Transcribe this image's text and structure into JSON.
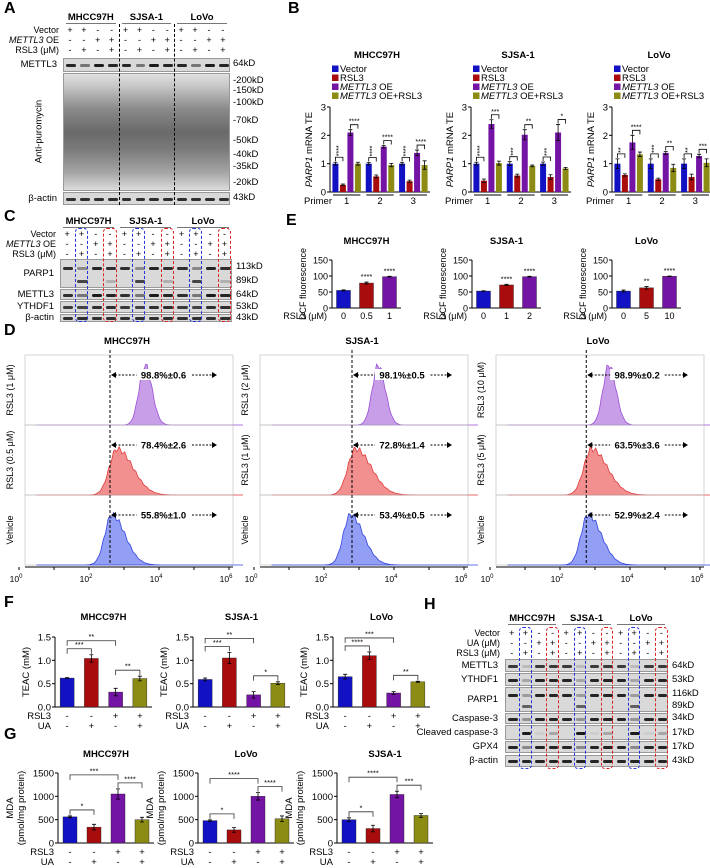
{
  "panel_letters": {
    "A": "A",
    "B": "B",
    "C": "C",
    "D": "D",
    "E": "E",
    "F": "F",
    "G": "G",
    "H": "H"
  },
  "colors": {
    "vector": "#1212c4",
    "rsl3": "#a80c0c",
    "mettl3": "#7414a4",
    "combo": "#8c8c14"
  },
  "blots": {
    "A": {
      "cells": [
        "MHCC97H",
        "SJSA-1",
        "LoVo"
      ],
      "treatments": [
        {
          "italic": "",
          "label": "Vector",
          "signs": [
            "+",
            "+",
            "-",
            "-"
          ]
        },
        {
          "italic": "METTL3",
          "label": " OE",
          "signs": [
            "-",
            "-",
            "+",
            "+"
          ]
        },
        {
          "italic": "",
          "label": "RSL3 (μM)",
          "signs": [
            "-",
            "+",
            "-",
            "+"
          ]
        }
      ],
      "rows": [
        {
          "label": "METTL3",
          "markers": [
            "64kD"
          ]
        },
        {
          "label": "Anti-puromycin",
          "markers": [
            "-200kD",
            "-150kD",
            "-100kD",
            "-70kD",
            "-50kD",
            "-40kD",
            "-35kD",
            "-20kD"
          ]
        },
        {
          "label": "β-actin",
          "markers": [
            "43kD"
          ]
        }
      ]
    },
    "C": {
      "cells": [
        "MHCC97H",
        "SJSA-1",
        "LoVo"
      ],
      "treatments": [
        {
          "italic": "",
          "label": "Vector",
          "signs": [
            "+",
            "+",
            "-",
            "-"
          ]
        },
        {
          "italic": "METTL3",
          "label": " OE",
          "signs": [
            "-",
            "-",
            "+",
            "+"
          ]
        },
        {
          "italic": "",
          "label": "RSL3 (μM)",
          "signs": [
            "-",
            "+",
            "-",
            "+"
          ]
        }
      ],
      "rows": [
        {
          "label": "PARP1",
          "markers": [
            "113kD",
            "89kD"
          ]
        },
        {
          "label": "METTL3",
          "markers": [
            "64kD"
          ]
        },
        {
          "label": "YTHDF1",
          "markers": [
            "53kD"
          ]
        },
        {
          "label": "β-actin",
          "markers": [
            "43kD"
          ]
        }
      ]
    },
    "H": {
      "cells": [
        "MHCC97H",
        "SJSA-1",
        "LoVo"
      ],
      "treatments": [
        {
          "italic": "",
          "label": "Vector",
          "signs": [
            "+",
            "+",
            "-",
            "-"
          ]
        },
        {
          "italic": "",
          "label": "UA (μM)",
          "signs": [
            "-",
            "-",
            "+",
            "+"
          ]
        },
        {
          "italic": "",
          "label": "RSL3 (μM)",
          "signs": [
            "-",
            "+",
            "-",
            "+"
          ]
        }
      ],
      "rows": [
        {
          "label": "METTL3",
          "markers": [
            "64kD"
          ]
        },
        {
          "label": "YTHDF1",
          "markers": [
            "53kD"
          ]
        },
        {
          "label": "PARP1",
          "markers": [
            "116kD",
            "89kD"
          ]
        },
        {
          "label": "Caspase-3",
          "markers": [
            "34kD"
          ]
        },
        {
          "label": "Cleaved caspase-3",
          "markers": [
            "17kD"
          ]
        },
        {
          "label": "GPX4",
          "markers": [
            "17kD"
          ]
        },
        {
          "label": "β-actin",
          "markers": [
            "43kD"
          ]
        }
      ]
    }
  },
  "chart_data": [
    {
      "id": "B-MHCC97H",
      "panel": "B",
      "type": "bar",
      "title": "MHCC97H",
      "ylabel_italic": "PARP1",
      "ylabel": " mRNA TE",
      "xlabel": "Primer",
      "categories": [
        "1",
        "2",
        "3"
      ],
      "ylim": [
        0,
        3
      ],
      "yticks": [
        0,
        1,
        2,
        3
      ],
      "series": [
        {
          "name": "Vector",
          "color": "#1212c4",
          "values": [
            1.0,
            1.0,
            1.0
          ],
          "errors": [
            0.05,
            0.04,
            0.04
          ]
        },
        {
          "name": "RSL3",
          "color": "#a80c0c",
          "values": [
            0.25,
            0.55,
            0.38
          ],
          "errors": [
            0.03,
            0.05,
            0.04
          ]
        },
        {
          "name": "METTL3 OE",
          "color": "#7414a4",
          "values": [
            2.1,
            1.6,
            1.38
          ],
          "errors": [
            0.1,
            0.04,
            0.1
          ]
        },
        {
          "name": "METTL3 OE+RSL3",
          "color": "#8c8c14",
          "values": [
            1.0,
            0.95,
            0.95
          ],
          "errors": [
            0.05,
            0.06,
            0.15
          ]
        }
      ],
      "significance": [
        [
          "****",
          "****"
        ],
        [
          "****",
          "****"
        ],
        [
          "****",
          "****"
        ]
      ]
    },
    {
      "id": "B-SJSA-1",
      "panel": "B",
      "type": "bar",
      "title": "SJSA-1",
      "ylabel_italic": "PARP1",
      "ylabel": " mRNA TE",
      "xlabel": "Primer",
      "categories": [
        "1",
        "2",
        "3"
      ],
      "ylim": [
        0,
        3
      ],
      "yticks": [
        0,
        1,
        2,
        3
      ],
      "series": [
        {
          "name": "Vector",
          "color": "#1212c4",
          "values": [
            1.0,
            1.0,
            1.0
          ],
          "errors": [
            0.05,
            0.07,
            0.06
          ]
        },
        {
          "name": "RSL3",
          "color": "#a80c0c",
          "values": [
            0.4,
            0.58,
            0.53
          ],
          "errors": [
            0.06,
            0.05,
            0.08
          ]
        },
        {
          "name": "METTL3 OE",
          "color": "#7414a4",
          "values": [
            2.4,
            2.02,
            2.1
          ],
          "errors": [
            0.15,
            0.18,
            0.28
          ]
        },
        {
          "name": "METTL3 OE+RSL3",
          "color": "#8c8c14",
          "values": [
            1.02,
            0.92,
            0.83
          ],
          "errors": [
            0.07,
            0.03,
            0.04
          ]
        }
      ],
      "significance": [
        [
          "****",
          "***"
        ],
        [
          "***",
          "**"
        ],
        [
          "***",
          "*"
        ]
      ]
    },
    {
      "id": "B-LoVo",
      "panel": "B",
      "type": "bar",
      "title": "LoVo",
      "ylabel_italic": "PARP1",
      "ylabel": " mRNA TE",
      "xlabel": "Primer",
      "categories": [
        "1",
        "2",
        "3"
      ],
      "ylim": [
        0,
        3
      ],
      "yticks": [
        0,
        1,
        2,
        3
      ],
      "series": [
        {
          "name": "Vector",
          "color": "#1212c4",
          "values": [
            1.0,
            1.0,
            1.0
          ],
          "errors": [
            0.17,
            0.17,
            0.17
          ]
        },
        {
          "name": "RSL3",
          "color": "#a80c0c",
          "values": [
            0.6,
            0.45,
            0.53
          ],
          "errors": [
            0.04,
            0.04,
            0.1
          ]
        },
        {
          "name": "METTL3 OE",
          "color": "#7414a4",
          "values": [
            1.75,
            1.38,
            1.27
          ],
          "errors": [
            0.25,
            0.05,
            0.06
          ]
        },
        {
          "name": "METTL3 OE+RSL3",
          "color": "#8c8c14",
          "values": [
            1.33,
            0.85,
            1.03
          ],
          "errors": [
            0.08,
            0.13,
            0.14
          ]
        }
      ],
      "significance": [
        [
          "**",
          "****"
        ],
        [
          "***",
          "**"
        ],
        [
          "**",
          "***"
        ]
      ]
    },
    {
      "id": "E-MHCC97H",
      "panel": "E",
      "type": "bar",
      "title": "MHCC97H",
      "ylabel": "DCF fluorescence",
      "xlabel": "RSL3 (μM)",
      "categories": [
        "0",
        "0.5",
        "1"
      ],
      "values": [
        55,
        78,
        98
      ],
      "errors": [
        1.5,
        3,
        1
      ],
      "colors": [
        "#1212c4",
        "#a80c0c",
        "#7414a4"
      ],
      "ylim": [
        0,
        150
      ],
      "yticks": [
        0,
        50,
        100,
        150
      ],
      "significance": [
        "",
        "****",
        "****"
      ]
    },
    {
      "id": "E-SJSA-1",
      "panel": "E",
      "type": "bar",
      "title": "SJSA-1",
      "ylabel": "DCF fluorescence",
      "xlabel": "RSL3 (μM)",
      "categories": [
        "0",
        "1",
        "2"
      ],
      "values": [
        53,
        72,
        98
      ],
      "errors": [
        1,
        2,
        1
      ],
      "colors": [
        "#1212c4",
        "#a80c0c",
        "#7414a4"
      ],
      "ylim": [
        0,
        150
      ],
      "yticks": [
        0,
        50,
        100,
        150
      ],
      "significance": [
        "",
        "****",
        "****"
      ]
    },
    {
      "id": "E-LoVo",
      "panel": "E",
      "type": "bar",
      "title": "LoVo",
      "ylabel": "DCF fluorescence",
      "xlabel": "RSL3 (μM)",
      "categories": [
        "0",
        "5",
        "10"
      ],
      "values": [
        53,
        63,
        99
      ],
      "errors": [
        3,
        4,
        1
      ],
      "colors": [
        "#1212c4",
        "#a80c0c",
        "#7414a4"
      ],
      "ylim": [
        0,
        150
      ],
      "yticks": [
        0,
        50,
        100,
        150
      ],
      "significance": [
        "",
        "**",
        "****"
      ]
    },
    {
      "id": "D-MHCC97H",
      "panel": "D",
      "type": "histogram",
      "title": "MHCC97H",
      "x_scale": "log10",
      "xticks": [
        "0",
        "2",
        "4",
        "6"
      ],
      "gate_log10": 2.6,
      "rows": [
        {
          "label": "RSL3 (1 μM)",
          "percent": "98.8%±0.6",
          "peak_log10": 3.6,
          "color": "#b67ee0"
        },
        {
          "label": "RSL3 (0.5 μM)",
          "percent": "78.4%±2.6",
          "peak_log10": 2.8,
          "color": "#ee6b6b"
        },
        {
          "label": "Vehicle",
          "percent": "55.8%±1.0",
          "peak_log10": 2.65,
          "color": "#6f7ff0"
        }
      ]
    },
    {
      "id": "D-SJSA-1",
      "panel": "D",
      "type": "histogram",
      "title": "SJSA-1",
      "x_scale": "log10",
      "xticks": [
        "0",
        "2",
        "4",
        "6"
      ],
      "gate_log10": 2.8,
      "rows": [
        {
          "label": "RSL3 (2 μM)",
          "percent": "98.1%±0.5",
          "peak_log10": 3.55,
          "color": "#b67ee0"
        },
        {
          "label": "RSL3 (1 μM)",
          "percent": "72.8%±1.4",
          "peak_log10": 2.9,
          "color": "#ee6b6b"
        },
        {
          "label": "Vehicle",
          "percent": "53.4%±0.5",
          "peak_log10": 2.75,
          "color": "#6f7ff0"
        }
      ]
    },
    {
      "id": "D-LoVo",
      "panel": "D",
      "type": "histogram",
      "title": "LoVo",
      "x_scale": "log10",
      "xticks": [
        "0",
        "2",
        "4",
        "6"
      ],
      "gate_log10": 2.75,
      "rows": [
        {
          "label": "RSL3 (10 μM)",
          "percent": "98.9%±0.2",
          "peak_log10": 3.4,
          "color": "#b67ee0"
        },
        {
          "label": "RSL3 (5 μM)",
          "percent": "63.5%±3.6",
          "peak_log10": 2.9,
          "color": "#ee6b6b"
        },
        {
          "label": "Vehicle",
          "percent": "52.9%±2.4",
          "peak_log10": 2.8,
          "color": "#6f7ff0"
        }
      ]
    },
    {
      "id": "F-MHCC97H",
      "panel": "F",
      "type": "bar",
      "title": "MHCC97H",
      "ylabel": "TEAC (mM)",
      "rows": [
        {
          "label": "RSL3",
          "signs": [
            "-",
            "-",
            "+",
            "+"
          ]
        },
        {
          "label": "UA",
          "signs": [
            "-",
            "+",
            "-",
            "+"
          ]
        }
      ],
      "values": [
        0.62,
        1.04,
        0.32,
        0.61
      ],
      "errors": [
        0.01,
        0.08,
        0.08,
        0.05
      ],
      "colors": [
        "#1212c4",
        "#a80c0c",
        "#7414a4",
        "#8c8c14"
      ],
      "ylim": [
        0,
        1.5
      ],
      "yticks": [
        0,
        0.5,
        1,
        1.5
      ],
      "ytick_labels": [
        "0.0",
        "0.5",
        "1.0",
        "1.5"
      ],
      "brackets": [
        [
          0,
          1,
          "***"
        ],
        [
          0,
          2,
          "**"
        ],
        [
          2,
          3,
          "**"
        ]
      ]
    },
    {
      "id": "F-SJSA-1",
      "panel": "F",
      "type": "bar",
      "title": "SJSA-1",
      "ylabel": "TEAC (mM)",
      "rows": [
        {
          "label": "RSL3",
          "signs": [
            "-",
            "-",
            "+",
            "+"
          ]
        },
        {
          "label": "UA",
          "signs": [
            "-",
            "+",
            "-",
            "+"
          ]
        }
      ],
      "values": [
        0.59,
        1.05,
        0.26,
        0.51
      ],
      "errors": [
        0.03,
        0.12,
        0.07,
        0.03
      ],
      "colors": [
        "#1212c4",
        "#a80c0c",
        "#7414a4",
        "#8c8c14"
      ],
      "ylim": [
        0,
        1.5
      ],
      "yticks": [
        0,
        0.5,
        1,
        1.5
      ],
      "ytick_labels": [
        "0.0",
        "0.5",
        "1.0",
        "1.5"
      ],
      "brackets": [
        [
          0,
          1,
          "***"
        ],
        [
          0,
          2,
          "**"
        ],
        [
          2,
          3,
          "*"
        ]
      ]
    },
    {
      "id": "F-LoVo",
      "panel": "F",
      "type": "bar",
      "title": "LoVo",
      "ylabel": "TEAC (mM)",
      "rows": [
        {
          "label": "RSL3",
          "signs": [
            "-",
            "-",
            "+",
            "+"
          ]
        },
        {
          "label": "UA",
          "signs": [
            "-",
            "+",
            "-",
            "+"
          ]
        }
      ],
      "values": [
        0.65,
        1.1,
        0.3,
        0.54
      ],
      "errors": [
        0.05,
        0.08,
        0.03,
        0.01
      ],
      "colors": [
        "#1212c4",
        "#a80c0c",
        "#7414a4",
        "#8c8c14"
      ],
      "ylim": [
        0,
        1.5
      ],
      "yticks": [
        0,
        0.5,
        1,
        1.5
      ],
      "ytick_labels": [
        "0.0",
        "0.5",
        "1.0",
        "1.5"
      ],
      "brackets": [
        [
          0,
          1,
          "****"
        ],
        [
          0,
          2,
          "***"
        ],
        [
          2,
          3,
          "**"
        ]
      ]
    },
    {
      "id": "G-MHCC97H",
      "panel": "G",
      "type": "bar",
      "title": "MHCC97H",
      "ylabel": [
        "MDA",
        "(pmol/mg protein)"
      ],
      "rows": [
        {
          "label": "RSL3",
          "signs": [
            "-",
            "-",
            "+",
            "+"
          ]
        },
        {
          "label": "UA",
          "signs": [
            "-",
            "+",
            "-",
            "+"
          ]
        }
      ],
      "values": [
        560,
        340,
        1050,
        500
      ],
      "errors": [
        20,
        60,
        110,
        50
      ],
      "colors": [
        "#1212c4",
        "#a80c0c",
        "#7414a4",
        "#8c8c14"
      ],
      "ylim": [
        0,
        1500
      ],
      "yticks": [
        0,
        500,
        1000,
        1500
      ],
      "brackets": [
        [
          0,
          1,
          "*"
        ],
        [
          0,
          2,
          "***"
        ],
        [
          2,
          3,
          "****"
        ]
      ]
    },
    {
      "id": "G-LoVo",
      "panel": "G",
      "type": "bar",
      "title": "LoVo",
      "ylabel": [
        "MDA",
        "(pmol/mg protein)"
      ],
      "rows": [
        {
          "label": "RSL3",
          "signs": [
            "-",
            "-",
            "+",
            "+"
          ]
        },
        {
          "label": "UA",
          "signs": [
            "-",
            "+",
            "-",
            "+"
          ]
        }
      ],
      "values": [
        480,
        280,
        1000,
        520
      ],
      "errors": [
        15,
        50,
        80,
        60
      ],
      "colors": [
        "#1212c4",
        "#a80c0c",
        "#7414a4",
        "#8c8c14"
      ],
      "ylim": [
        0,
        1500
      ],
      "yticks": [
        0,
        500,
        1000,
        1500
      ],
      "brackets": [
        [
          0,
          1,
          "*"
        ],
        [
          0,
          2,
          "****"
        ],
        [
          2,
          3,
          "****"
        ]
      ]
    },
    {
      "id": "G-SJSA-1",
      "panel": "G",
      "type": "bar",
      "title": "SJSA-1",
      "ylabel": [
        "MDA",
        "(pmol/mg protein)"
      ],
      "rows": [
        {
          "label": "RSL3",
          "signs": [
            "-",
            "-",
            "+",
            "+"
          ]
        },
        {
          "label": "UA",
          "signs": [
            "-",
            "+",
            "-",
            "+"
          ]
        }
      ],
      "values": [
        500,
        310,
        1040,
        590
      ],
      "errors": [
        40,
        70,
        70,
        40
      ],
      "colors": [
        "#1212c4",
        "#a80c0c",
        "#7414a4",
        "#8c8c14"
      ],
      "ylim": [
        0,
        1500
      ],
      "yticks": [
        0,
        500,
        1000,
        1500
      ],
      "brackets": [
        [
          0,
          1,
          "*"
        ],
        [
          0,
          2,
          "****"
        ],
        [
          2,
          3,
          "***"
        ]
      ]
    }
  ]
}
